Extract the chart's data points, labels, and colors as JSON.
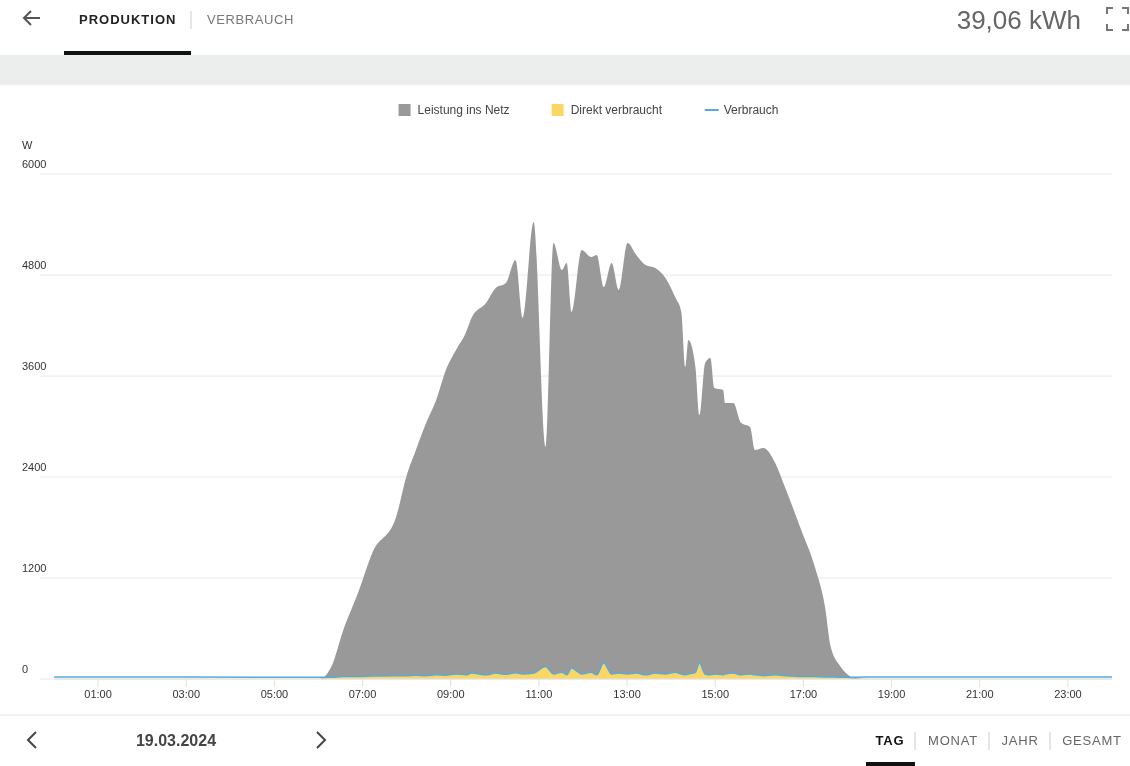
{
  "chart_data": {
    "type": "area",
    "stacked": true,
    "ylabel": "W",
    "legend": "top",
    "grid": "y",
    "annotations": [
      "PRODUKTION",
      "VERBRAUCH",
      "39,06 kWh",
      "19.03.2024",
      "TAG",
      "MONAT",
      "JAHR",
      "GESAMT"
    ],
    "xlim": [
      0,
      24
    ],
    "ylim": [
      0,
      6000
    ],
    "xticks": [
      {
        "value": 1,
        "label": "01:00"
      },
      {
        "value": 3,
        "label": "03:00"
      },
      {
        "value": 5,
        "label": "05:00"
      },
      {
        "value": 7,
        "label": "07:00"
      },
      {
        "value": 9,
        "label": "09:00"
      },
      {
        "value": 11,
        "label": "11:00"
      },
      {
        "value": 13,
        "label": "13:00"
      },
      {
        "value": 15,
        "label": "15:00"
      },
      {
        "value": 17,
        "label": "17:00"
      },
      {
        "value": 19,
        "label": "19:00"
      },
      {
        "value": 21,
        "label": "21:00"
      },
      {
        "value": 23,
        "label": "23:00"
      }
    ],
    "yticks": [
      0,
      1200,
      2400,
      3600,
      4800,
      6000
    ],
    "x": [
      0,
      3,
      6.02,
      6.31,
      6.54,
      6.92,
      7.22,
      7.76,
      7.99,
      8.21,
      8.44,
      8.67,
      8.89,
      9.12,
      9.34,
      9.48,
      9.8,
      10.02,
      10.25,
      10.47,
      10.63,
      10.88,
      11.15,
      11.33,
      11.52,
      11.63,
      11.74,
      11.97,
      12.19,
      12.31,
      12.47,
      12.65,
      12.81,
      13.01,
      13.21,
      13.42,
      13.64,
      13.87,
      14.09,
      14.23,
      14.32,
      14.39,
      14.55,
      14.64,
      14.77,
      14.89,
      14.98,
      15.18,
      15.22,
      15.41,
      15.59,
      15.79,
      15.9,
      16.09,
      16.36,
      16.58,
      16.95,
      17.26,
      17.49,
      17.62,
      17.85,
      18.17,
      18.5,
      21,
      24
    ],
    "series": [
      {
        "name": "Direkt verbraucht",
        "color": "#fad664",
        "values": [
          0,
          0,
          0,
          20,
          30,
          30,
          35,
          40,
          40,
          45,
          40,
          50,
          45,
          60,
          50,
          70,
          50,
          70,
          55,
          75,
          60,
          70,
          150,
          60,
          80,
          50,
          130,
          60,
          80,
          50,
          190,
          60,
          70,
          60,
          70,
          50,
          70,
          60,
          80,
          60,
          50,
          60,
          80,
          190,
          60,
          50,
          60,
          50,
          60,
          70,
          50,
          60,
          50,
          40,
          50,
          40,
          30,
          30,
          25,
          25,
          20,
          0,
          0,
          0,
          0
        ]
      },
      {
        "name": "Leistung ins Netz",
        "color": "#999999",
        "values": [
          0,
          0,
          0,
          146,
          516,
          1027,
          1462,
          1885,
          2360,
          2675,
          3001,
          3265,
          3626,
          3849,
          4060,
          4230,
          4417,
          4575,
          4649,
          4903,
          4229,
          5359,
          2606,
          5120,
          4779,
          4892,
          4230,
          5037,
          4933,
          4987,
          4467,
          4882,
          4551,
          5120,
          4967,
          4868,
          4813,
          4704,
          4458,
          4300,
          3657,
          3967,
          3627,
          2946,
          3694,
          3763,
          3397,
          3383,
          3219,
          3209,
          2991,
          2934,
          2670,
          2704,
          2516,
          2241,
          1740,
          1301,
          830,
          355,
          123,
          12,
          0,
          0,
          0
        ]
      },
      {
        "name": "Verbrauch",
        "type": "line",
        "color": "#5aaad8",
        "values": [
          25,
          25,
          20,
          20,
          30,
          30,
          35,
          40,
          40,
          45,
          40,
          50,
          45,
          60,
          50,
          70,
          50,
          70,
          55,
          75,
          60,
          70,
          150,
          60,
          80,
          50,
          130,
          60,
          80,
          50,
          190,
          60,
          70,
          60,
          70,
          50,
          70,
          60,
          80,
          60,
          50,
          60,
          80,
          190,
          60,
          50,
          60,
          50,
          60,
          70,
          50,
          60,
          50,
          40,
          50,
          40,
          30,
          30,
          25,
          25,
          20,
          20,
          25,
          25,
          25
        ]
      }
    ]
  }
}
